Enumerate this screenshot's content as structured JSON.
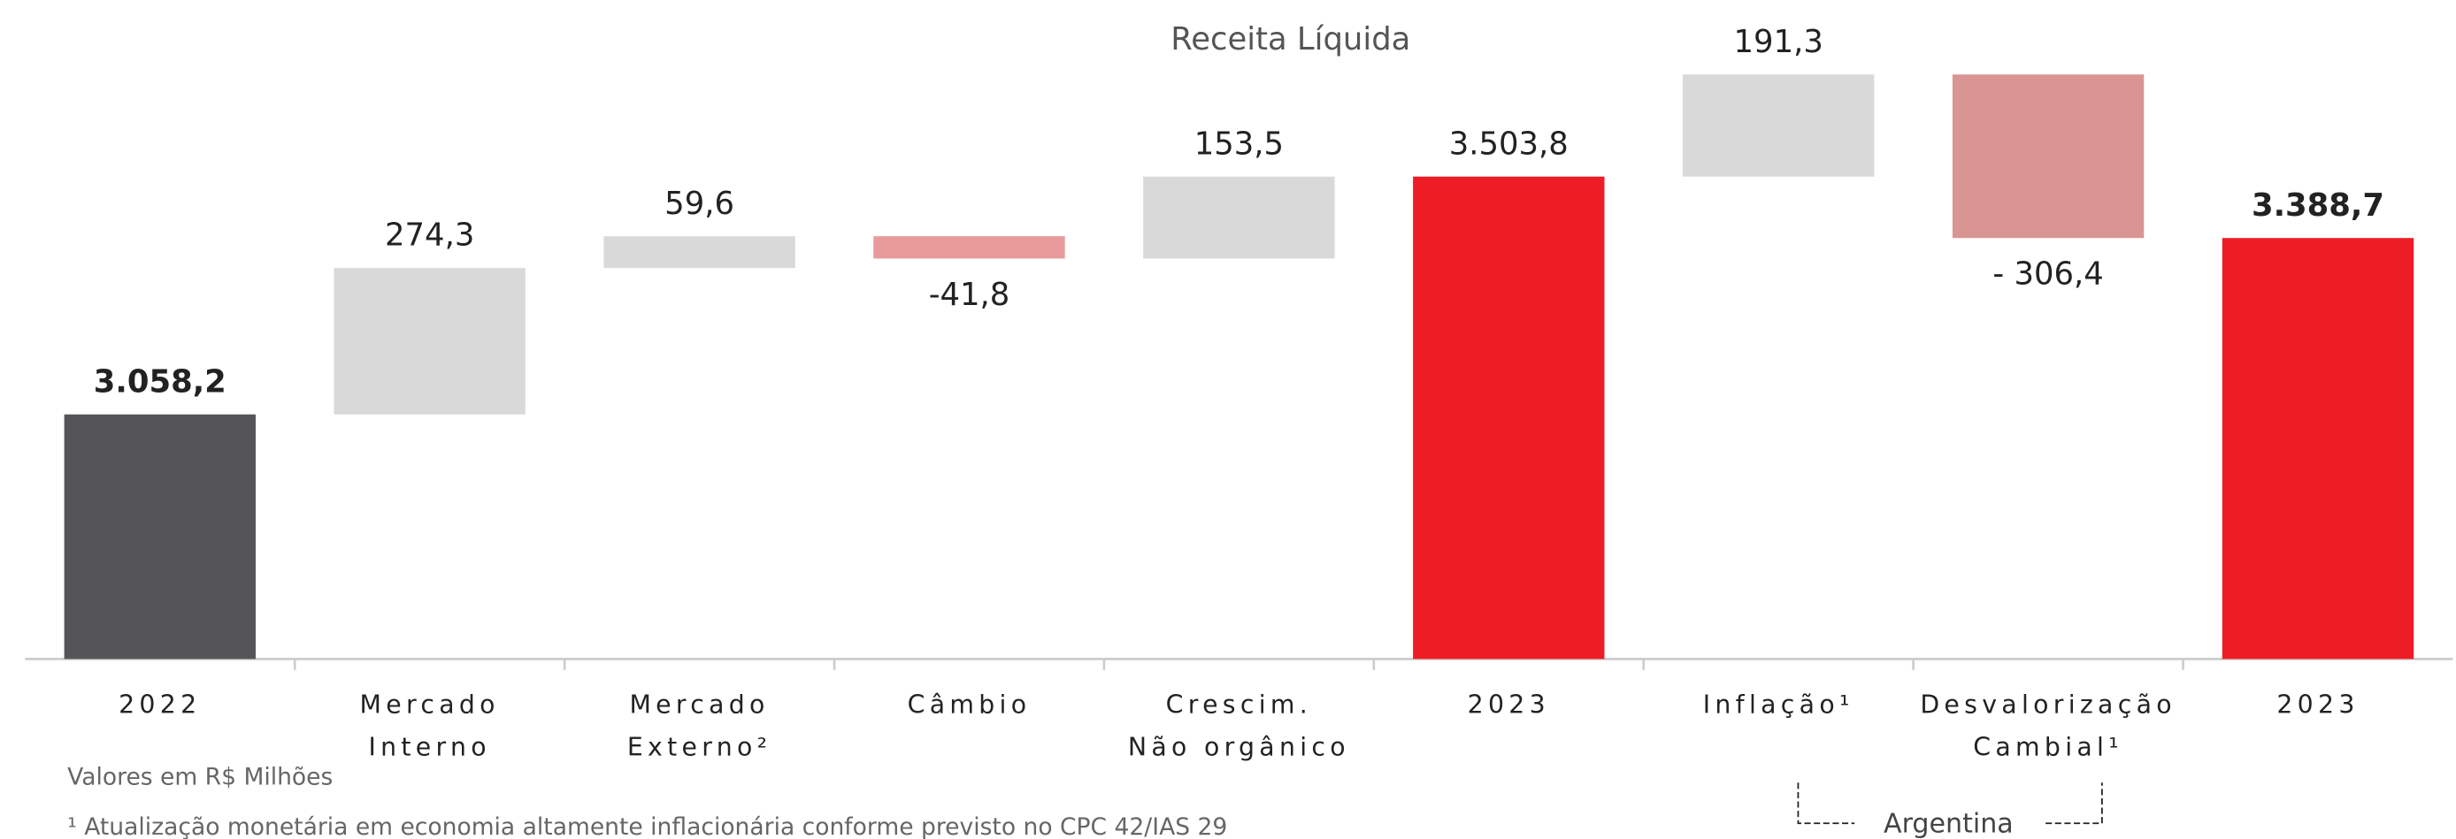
{
  "chart_data": {
    "type": "waterfall",
    "title": "Receita Líquida",
    "categories": [
      [
        "2022"
      ],
      [
        "Mercado",
        "Interno"
      ],
      [
        "Mercado",
        "Externo²"
      ],
      [
        "Câmbio"
      ],
      [
        "Crescim.",
        "Não orgânico"
      ],
      [
        "2023"
      ],
      [
        "Inflação¹"
      ],
      [
        "Desvalorização",
        "Cambial¹"
      ],
      [
        "2023"
      ]
    ],
    "measure": [
      "total",
      "relative",
      "relative",
      "relative",
      "relative",
      "total",
      "relative",
      "relative",
      "total"
    ],
    "values": [
      3058.2,
      274.3,
      59.6,
      -41.8,
      153.5,
      3503.8,
      191.3,
      -306.4,
      3388.7
    ],
    "value_labels": [
      "3.058,2",
      "274,3",
      "59,6",
      "-41,8",
      "153,5",
      "3.503,8",
      "191,3",
      "- 306,4",
      "3.388,7"
    ],
    "colors": [
      "#555559",
      "#d9d9d9",
      "#d9d9d9",
      "#e99a9a",
      "#d9d9d9",
      "#ee1c25",
      "#d9d9d9",
      "#d99593",
      "#ee1c25"
    ],
    "ylim": [
      2600,
      3600
    ],
    "annotations": [
      "Valores em R$ Milhões",
      "¹ Atualização monetária em economia altamente inflacionária conforme previsto no CPC 42/IAS 29",
      "Argentina"
    ]
  }
}
